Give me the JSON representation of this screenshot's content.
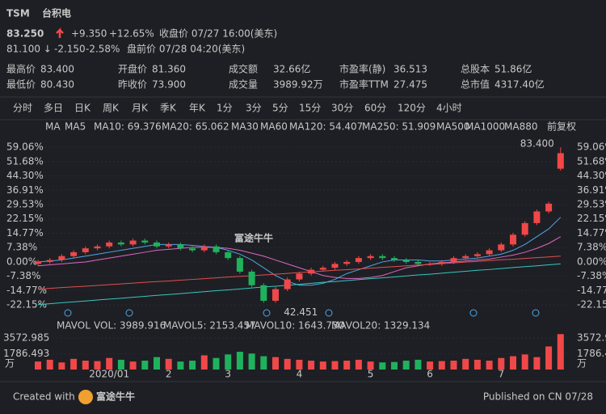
{
  "header": {
    "ticker": "TSM",
    "name": "台积电",
    "price": "83.250",
    "change": "+9.350",
    "change_pct": "+12.65%",
    "close_note": "收盘价 07/27 16:00(美东)",
    "pre_price": "81.100 ↓",
    "pre_change": "-2.150",
    "pre_change_pct": "-2.58%",
    "pre_note": "盘前价 07/28 04:20(美东)"
  },
  "stats": [
    [
      {
        "label": "最高价",
        "value": "83.400"
      },
      {
        "label": "开盘价",
        "value": "81.360"
      },
      {
        "label": "成交额",
        "value": "32.66亿"
      },
      {
        "label": "市盈率(静)",
        "value": "36.513"
      },
      {
        "label": "总股本",
        "value": "51.86亿"
      }
    ],
    [
      {
        "label": "最低价",
        "value": "80.430"
      },
      {
        "label": "昨收价",
        "value": "73.900"
      },
      {
        "label": "成交量",
        "value": "3989.92万"
      },
      {
        "label": "市盈率TTM",
        "value": "27.475"
      },
      {
        "label": "总市值",
        "value": "4317.40亿"
      }
    ]
  ],
  "tabs": {
    "items": [
      "分时",
      "多日",
      "日K",
      "周K",
      "月K",
      "季K",
      "年K",
      "1分",
      "3分",
      "5分",
      "15分",
      "30分",
      "60分",
      "120分",
      "4小时"
    ],
    "active": 2
  },
  "chart_data": [
    {
      "type": "candlestick",
      "legend_title": "MA",
      "adjust": "前复权",
      "annotations": [
        "83.400",
        "42.451"
      ],
      "open": [
        -1,
        0,
        1,
        3,
        5,
        7,
        8,
        10,
        9,
        11,
        10,
        8,
        9,
        7,
        6,
        8,
        5,
        2,
        -5,
        -12,
        -20,
        -14,
        -9,
        -6,
        -4,
        -3,
        -1,
        0,
        2,
        3,
        2,
        1,
        0,
        -1,
        -1,
        0,
        2,
        3,
        4,
        6,
        9,
        14,
        20,
        26,
        48
      ],
      "close": [
        0,
        1,
        3,
        5,
        7,
        8,
        10,
        9,
        11,
        10,
        8,
        9,
        7,
        6,
        8,
        5,
        2,
        -5,
        -12,
        -20,
        -14,
        -9,
        -6,
        -4,
        -3,
        -1,
        0,
        2,
        3,
        2,
        1,
        0,
        -1,
        -1,
        0,
        2,
        3,
        4,
        6,
        9,
        14,
        20,
        26,
        30,
        56
      ],
      "high": [
        1,
        2,
        4,
        6,
        8,
        9,
        11,
        11,
        12,
        12,
        11,
        10,
        10,
        8,
        9,
        9,
        6,
        3,
        -4,
        -11,
        -13,
        -8,
        -5,
        -3,
        -2,
        0,
        1,
        3,
        4,
        4,
        3,
        2,
        1,
        0,
        1,
        3,
        4,
        5,
        7,
        10,
        15,
        21,
        27,
        31,
        59
      ],
      "low": [
        -2,
        -1,
        0,
        2,
        4,
        6,
        7,
        8,
        8,
        9,
        7,
        7,
        6,
        5,
        5,
        4,
        1,
        -6,
        -13,
        -21,
        -21,
        -15,
        -10,
        -7,
        -5,
        -4,
        -2,
        -1,
        1,
        1,
        0,
        -1,
        -2,
        -2,
        -2,
        -1,
        1,
        2,
        3,
        5,
        8,
        13,
        19,
        25,
        47
      ],
      "up_color": "#f04848",
      "down_color": "#1fb25c",
      "series": [
        {
          "name": "MA5",
          "color": "#7a6240"
        },
        {
          "name": "MA10: 69.376",
          "color": "#4fa6e8",
          "values": [
            0,
            0.5,
            1,
            2,
            3,
            4,
            5,
            6,
            7,
            8,
            9,
            9,
            9,
            8.5,
            8,
            7.5,
            6,
            4,
            1,
            -3,
            -7,
            -10,
            -12,
            -12,
            -11,
            -9,
            -6,
            -4,
            -2,
            0,
            1,
            1,
            1,
            0.5,
            0.5,
            1,
            1.5,
            2,
            3,
            4,
            6,
            9,
            13,
            17,
            23
          ]
        },
        {
          "name": "MA20: 65.062",
          "color": "#e066c4",
          "values": [
            -2,
            -1.5,
            -1,
            -0.5,
            0,
            1,
            2,
            3,
            4,
            5,
            6,
            6.5,
            7,
            7.5,
            7.5,
            7.5,
            7,
            6,
            4.5,
            3,
            1,
            -1,
            -3,
            -5,
            -7,
            -8,
            -8.5,
            -8.5,
            -8,
            -7,
            -5,
            -3,
            -2,
            -1,
            -0.5,
            0,
            0.5,
            1,
            1.5,
            2.5,
            3.5,
            5,
            7,
            9.5,
            13
          ]
        },
        {
          "name": "MA30",
          "color": "#3a5a80"
        },
        {
          "name": "MA60",
          "color": "#3a7050"
        },
        {
          "name": "MA120: 54.407",
          "color": "#e05050",
          "values": [
            -14,
            -13.6,
            -13.2,
            -12.8,
            -12.5,
            -12.1,
            -11.7,
            -11.3,
            -10.9,
            -10.5,
            -10.1,
            -9.8,
            -9.4,
            -9,
            -8.6,
            -8.2,
            -7.8,
            -7.4,
            -7.1,
            -6.7,
            -6.3,
            -5.9,
            -5.5,
            -5.1,
            -4.7,
            -4.3,
            -4,
            -3.6,
            -3.2,
            -2.8,
            -2.4,
            -2,
            -1.6,
            -1.3,
            -0.9,
            -0.5,
            -0.1,
            0.3,
            0.7,
            1.1,
            1.4,
            1.8,
            2.2,
            2.6,
            3
          ]
        },
        {
          "name": "MA250: 51.909",
          "color": "#37c7c0",
          "values": [
            -22,
            -21.5,
            -21,
            -20.6,
            -20.1,
            -19.6,
            -19.1,
            -18.7,
            -18.2,
            -17.7,
            -17.2,
            -16.8,
            -16.3,
            -15.8,
            -15.3,
            -14.8,
            -14.4,
            -13.9,
            -13.4,
            -12.9,
            -12.5,
            -12,
            -11.5,
            -11,
            -10.5,
            -10.1,
            -9.6,
            -9.1,
            -8.6,
            -8.2,
            -7.7,
            -7.2,
            -6.7,
            -6.3,
            -5.8,
            -5.3,
            -4.8,
            -4.3,
            -3.9,
            -3.4,
            -2.9,
            -2.4,
            -2,
            -1.5,
            -1
          ]
        },
        {
          "name": "MA500",
          "color": "#7a6240"
        },
        {
          "name": "MA1000",
          "color": "#4a4a8a"
        },
        {
          "name": "MA880",
          "color": "#5a5a5a"
        }
      ],
      "ylim": [
        -25,
        62
      ],
      "yticks": [
        {
          "value": 59.06,
          "label": "59.06%"
        },
        {
          "value": 51.68,
          "label": "51.68%"
        },
        {
          "value": 44.3,
          "label": "44.30%"
        },
        {
          "value": 36.91,
          "label": "36.91%"
        },
        {
          "value": 29.53,
          "label": "29.53%"
        },
        {
          "value": 22.15,
          "label": "22.15%"
        },
        {
          "value": 14.77,
          "label": "14.77%"
        },
        {
          "value": 7.38,
          "label": "7.38%"
        },
        {
          "value": 0,
          "label": "0.00%"
        },
        {
          "value": -7.38,
          "label": "-7.38%"
        },
        {
          "value": -14.77,
          "label": "-14.77%"
        },
        {
          "value": -22.15,
          "label": "-22.15%"
        }
      ],
      "grid": true
    },
    {
      "type": "bar",
      "legend_title": "MAVOL",
      "unit": "万",
      "series": [
        {
          "name": "VOL: 3989.916",
          "color": "#cfcfcf"
        },
        {
          "name": "MAVOL5: 2153.457",
          "color": "#e0a040"
        },
        {
          "name": "MAVOL10: 1643.730",
          "color": "#4fa6e8"
        },
        {
          "name": "MAVOL20: 1329.134",
          "color": "#c070e0"
        }
      ],
      "categories": [
        null,
        null,
        null,
        null,
        null,
        null,
        "2020/01",
        null,
        null,
        null,
        null,
        "2",
        null,
        null,
        null,
        null,
        "3",
        null,
        null,
        null,
        null,
        null,
        "4",
        null,
        null,
        null,
        null,
        null,
        "5",
        null,
        null,
        null,
        null,
        "6",
        null,
        null,
        null,
        null,
        null,
        "7",
        null,
        null,
        null,
        null,
        null
      ],
      "values": [
        900,
        1100,
        800,
        1200,
        1000,
        950,
        1300,
        1100,
        900,
        1000,
        1400,
        1200,
        900,
        1000,
        1600,
        1300,
        1700,
        2000,
        1800,
        1500,
        1400,
        1200,
        1100,
        1000,
        900,
        950,
        1000,
        1100,
        900,
        800,
        850,
        1000,
        1100,
        900,
        950,
        1000,
        1200,
        1100,
        1000,
        1300,
        1500,
        1700,
        1400,
        2600,
        3989.916
      ],
      "ylim": [
        0,
        4100
      ],
      "yticks": [
        3572.985,
        1786.493
      ]
    }
  ],
  "footer": {
    "created": "Created with",
    "brand": "富途牛牛",
    "published": "Published on CN 07/28"
  }
}
